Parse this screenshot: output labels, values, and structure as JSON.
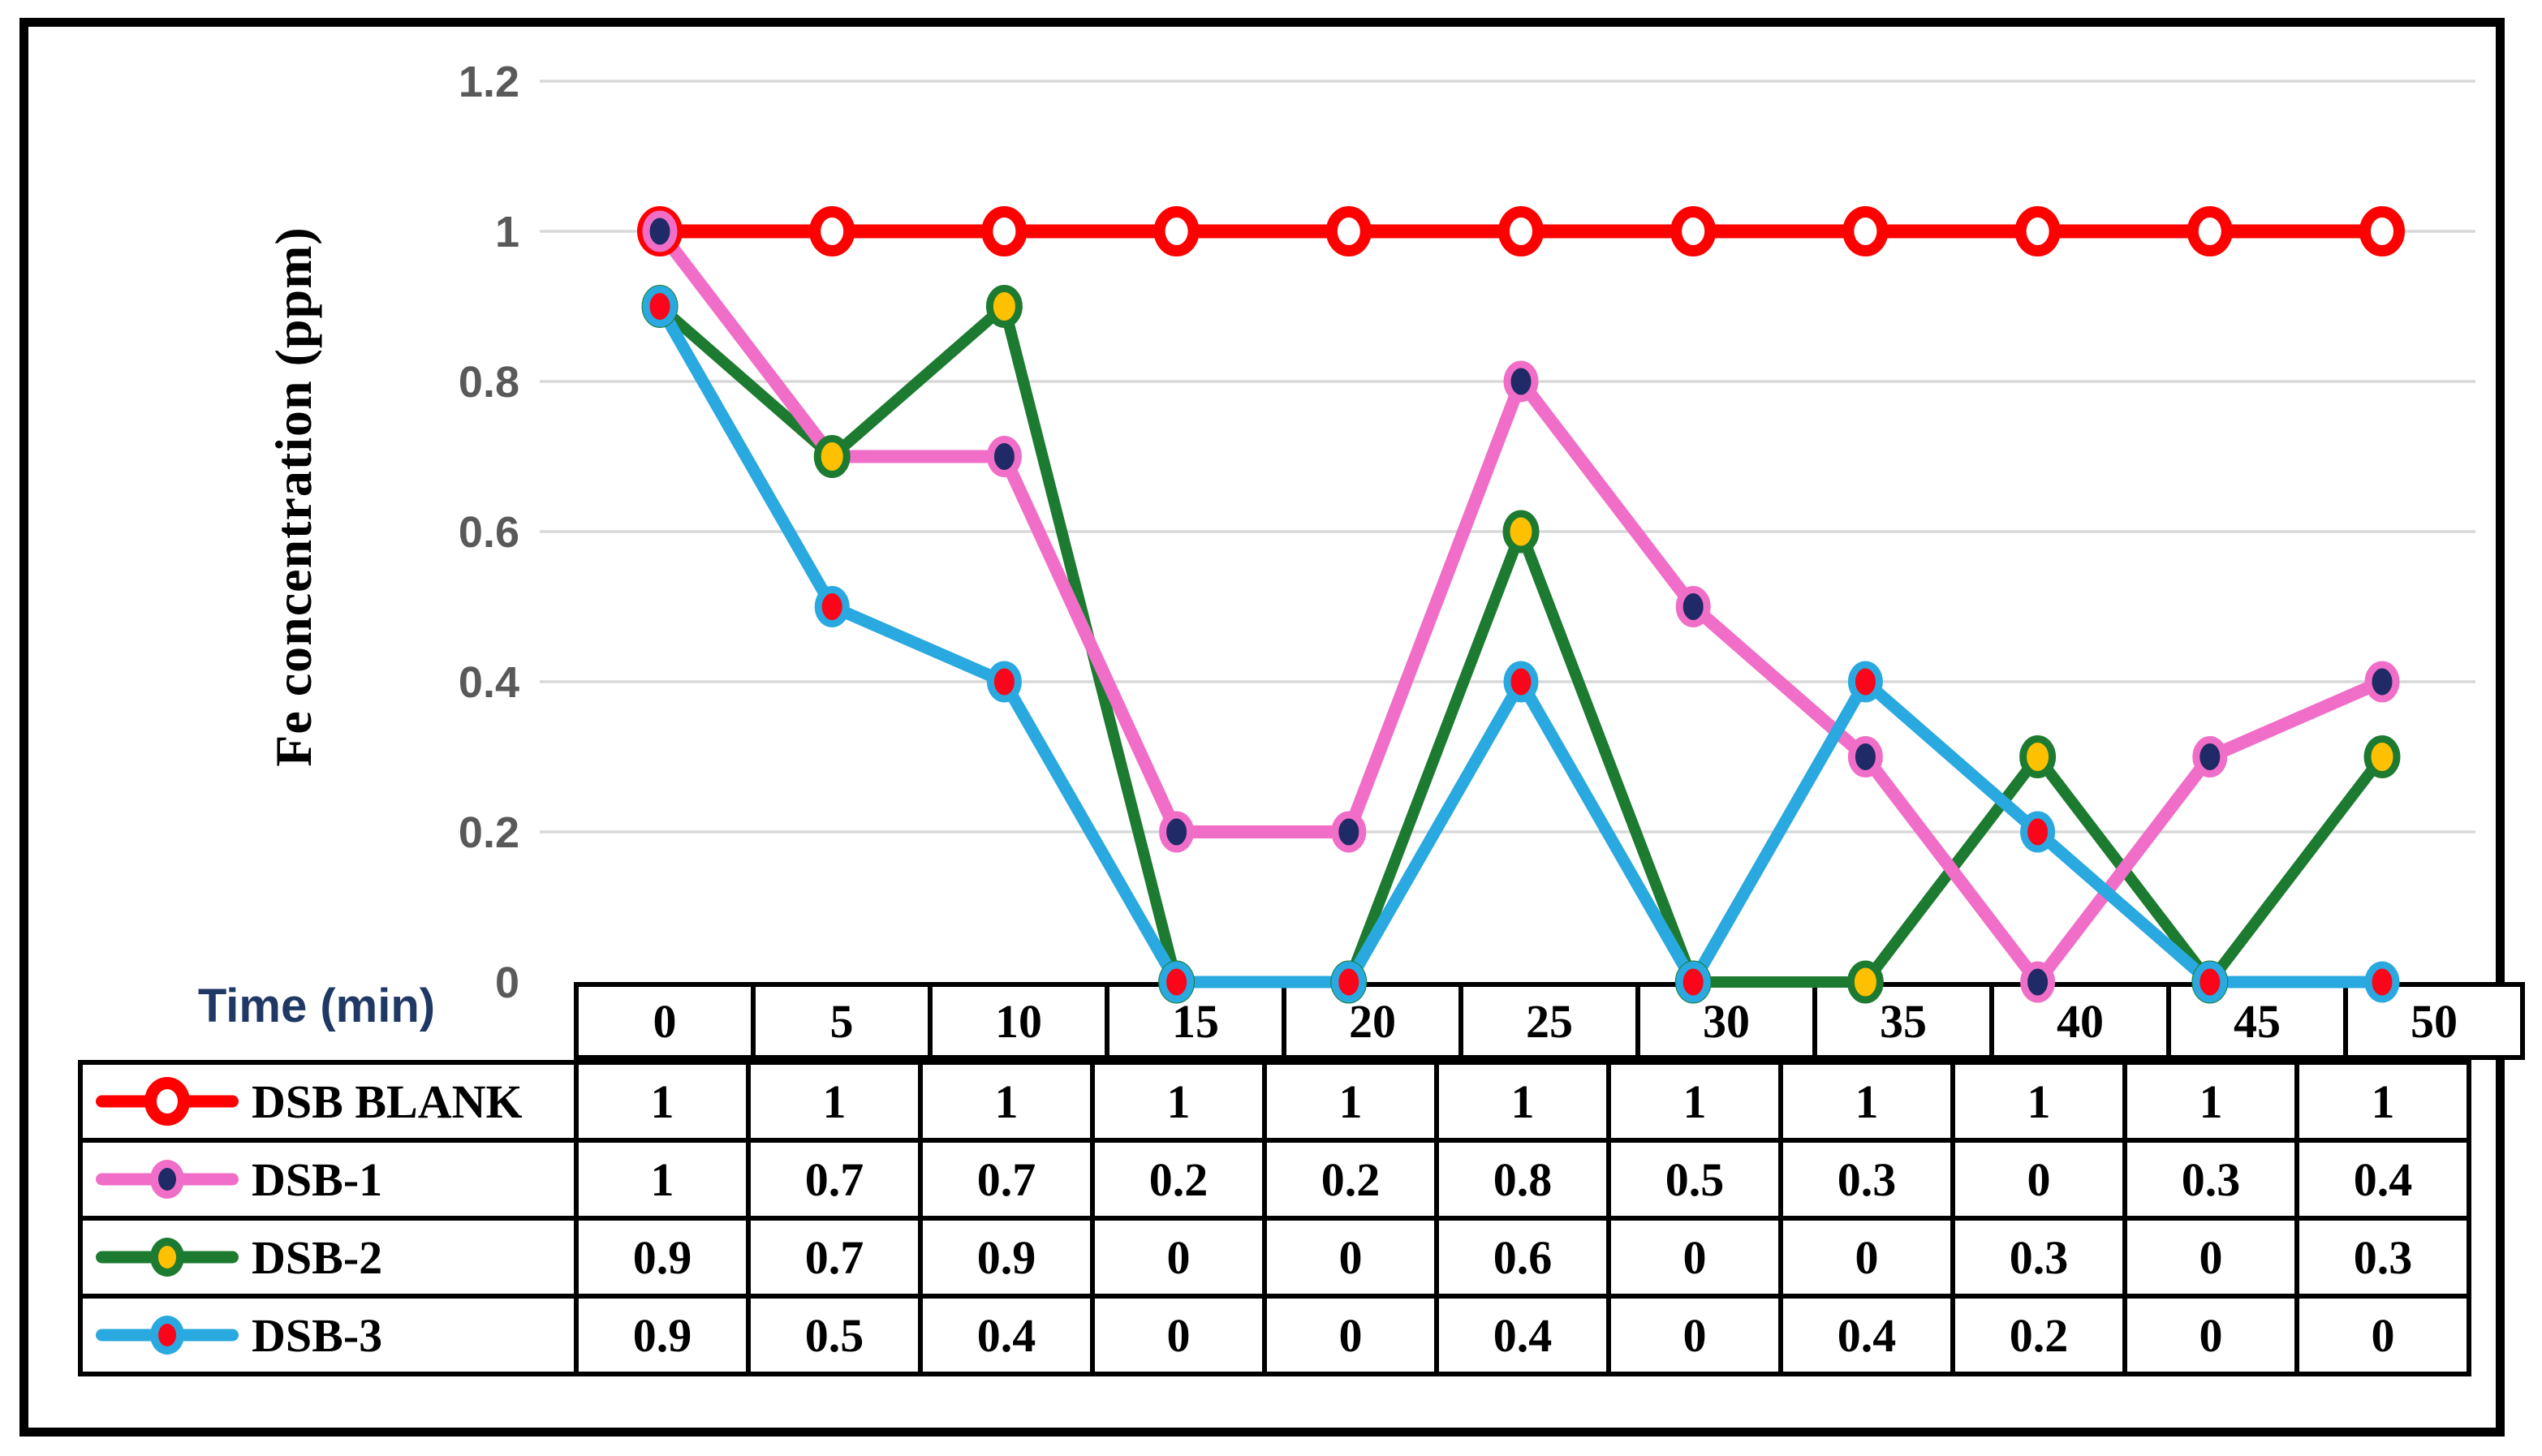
{
  "figure": {
    "background": "#FFFFFF",
    "border_color": "#000000"
  },
  "chart": {
    "y_axis_title": "Fe concentration (ppm)",
    "tick_color": "#595959",
    "grid_color": "#D9D9D9",
    "y_ticks": [
      {
        "label": "1.2",
        "value": 1.2
      },
      {
        "label": "1",
        "value": 1
      },
      {
        "label": "0.8",
        "value": 0.8
      },
      {
        "label": "0.6",
        "value": 0.6
      },
      {
        "label": "0.4",
        "value": 0.4
      },
      {
        "label": "0.2",
        "value": 0.2
      },
      {
        "label": "0",
        "value": 0
      }
    ]
  },
  "chart_data": {
    "type": "line",
    "title": "",
    "xlabel": "Time (min)",
    "ylabel": "Fe concentration (ppm)",
    "x": [
      0,
      5,
      10,
      15,
      20,
      25,
      30,
      35,
      40,
      45,
      50
    ],
    "ylim": [
      0,
      1.2
    ],
    "grid": true,
    "legend_position": "table-left",
    "series": [
      {
        "name": "DSB BLANK",
        "values": [
          1,
          1,
          1,
          1,
          1,
          1,
          1,
          1,
          1,
          1,
          1
        ],
        "line_color": "#FE0000",
        "marker_fill": "#FFFFFF",
        "marker_ring": "#FE0000",
        "marker_style": "open-circle"
      },
      {
        "name": "DSB-1",
        "values": [
          1,
          0.7,
          0.7,
          0.2,
          0.2,
          0.8,
          0.5,
          0.3,
          0,
          0.3,
          0.4
        ],
        "line_color": "#F06EC7",
        "marker_fill": "#1F2A66",
        "marker_ring": "#F06EC7",
        "marker_style": "filled-circle"
      },
      {
        "name": "DSB-2",
        "values": [
          0.9,
          0.7,
          0.9,
          0,
          0,
          0.6,
          0,
          0,
          0.3,
          0,
          0.3
        ],
        "line_color": "#1C7B30",
        "marker_fill": "#FFC000",
        "marker_ring": "#1C7B30",
        "marker_style": "filled-circle"
      },
      {
        "name": "DSB-3",
        "values": [
          0.9,
          0.5,
          0.4,
          0,
          0,
          0.4,
          0,
          0.4,
          0.2,
          0,
          0
        ],
        "line_color": "#29A9DF",
        "marker_fill": "#FA0519",
        "marker_ring": "#29A9DF",
        "marker_style": "filled-circle"
      }
    ]
  },
  "table": {
    "corner_label": "Time (min)",
    "columns": [
      "0",
      "5",
      "10",
      "15",
      "20",
      "25",
      "30",
      "35",
      "40",
      "45",
      "50"
    ],
    "rows": [
      {
        "label": "DSB BLANK",
        "values": [
          "1",
          "1",
          "1",
          "1",
          "1",
          "1",
          "1",
          "1",
          "1",
          "1",
          "1"
        ]
      },
      {
        "label": "DSB-1",
        "values": [
          "1",
          "0.7",
          "0.7",
          "0.2",
          "0.2",
          "0.8",
          "0.5",
          "0.3",
          "0",
          "0.3",
          "0.4"
        ]
      },
      {
        "label": "DSB-2",
        "values": [
          "0.9",
          "0.7",
          "0.9",
          "0",
          "0",
          "0.6",
          "0",
          "0",
          "0.3",
          "0",
          "0.3"
        ]
      },
      {
        "label": "DSB-3",
        "values": [
          "0.9",
          "0.5",
          "0.4",
          "0",
          "0",
          "0.4",
          "0",
          "0.4",
          "0.2",
          "0",
          "0"
        ]
      }
    ]
  }
}
